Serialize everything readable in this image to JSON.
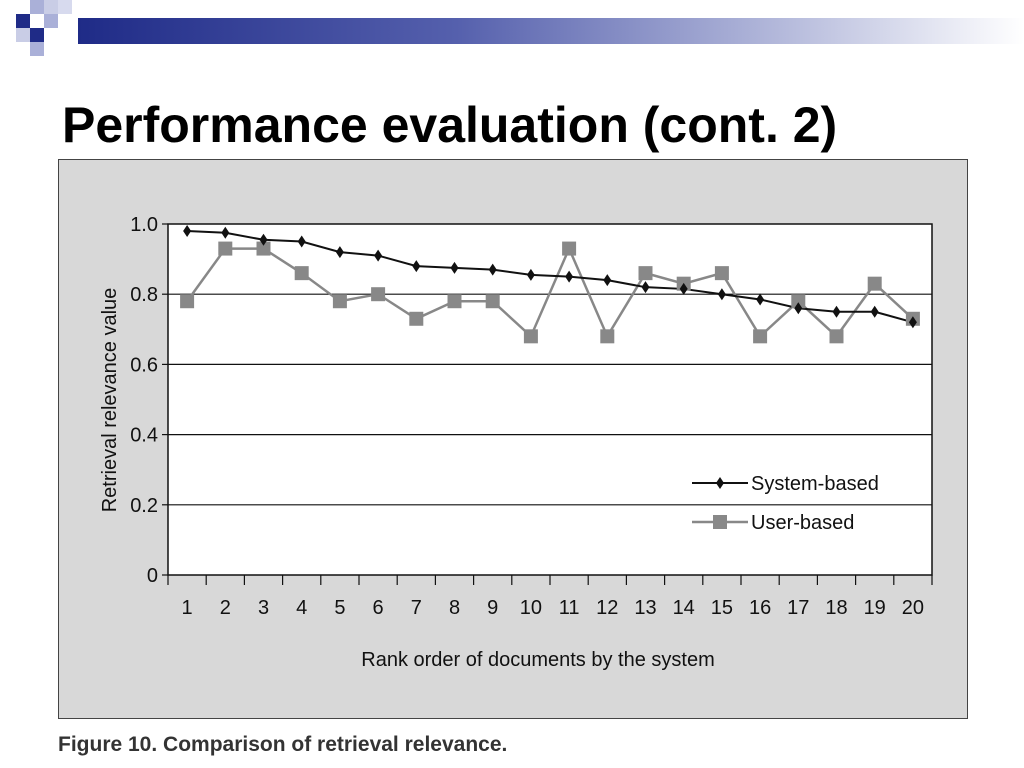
{
  "slide": {
    "title": "Performance evaluation (cont. 2)",
    "caption": "Figure 10. Comparison of retrieval relevance."
  },
  "colors": {
    "banner": "#1f2b87",
    "panel_background": "#d8d8d8",
    "system_series": "#111111",
    "user_series": "#888888"
  },
  "chart_data": {
    "type": "line",
    "xlabel": "Rank order of documents by the system",
    "ylabel": "Retrieval relevance value",
    "ylim": [
      0,
      1.0
    ],
    "yticks": [
      "0",
      "0.2",
      "0.4",
      "0.6",
      "0.8",
      "1.0"
    ],
    "grid": "horizontal",
    "legend_position": "bottom-right",
    "categories": [
      "1",
      "2",
      "3",
      "4",
      "5",
      "6",
      "7",
      "8",
      "9",
      "10",
      "11",
      "12",
      "13",
      "14",
      "15",
      "16",
      "17",
      "18",
      "19",
      "20"
    ],
    "series": [
      {
        "name": "System-based",
        "marker": "diamond",
        "color": "#111111",
        "values": [
          0.98,
          0.975,
          0.955,
          0.95,
          0.92,
          0.91,
          0.88,
          0.875,
          0.87,
          0.855,
          0.85,
          0.84,
          0.82,
          0.815,
          0.8,
          0.785,
          0.76,
          0.75,
          0.75,
          0.72
        ]
      },
      {
        "name": "User-based",
        "marker": "square",
        "color": "#888888",
        "values": [
          0.78,
          0.93,
          0.93,
          0.86,
          0.78,
          0.8,
          0.73,
          0.78,
          0.78,
          0.68,
          0.93,
          0.68,
          0.86,
          0.83,
          0.86,
          0.68,
          0.78,
          0.68,
          0.83,
          0.73
        ]
      }
    ]
  }
}
